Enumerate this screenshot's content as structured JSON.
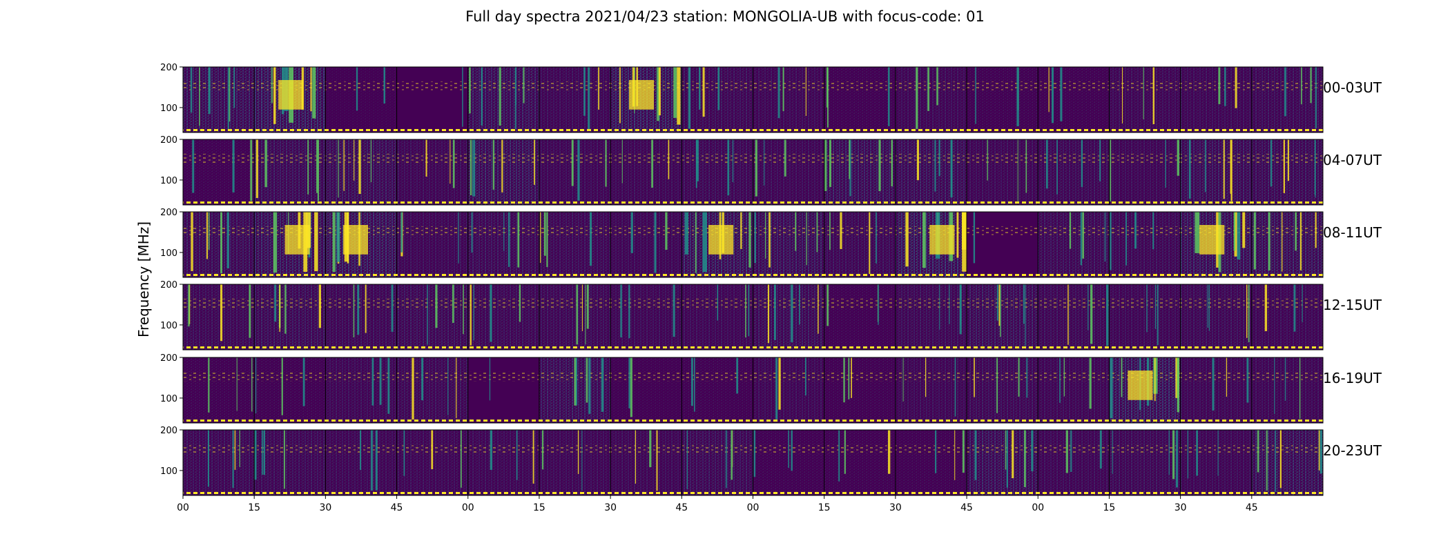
{
  "chart_data": {
    "type": "heatmap",
    "title": "Full day spectra 2021/04/23 station: MONGOLIA-UB with focus-code: 01",
    "ylabel": "Frequency [MHz]",
    "xlabel": "",
    "y_tick_labels": [
      "200",
      "100"
    ],
    "x_tick_labels": [
      "00",
      "15",
      "30",
      "45",
      "00",
      "15",
      "30",
      "45",
      "00",
      "15",
      "30",
      "45",
      "00",
      "15",
      "30",
      "45"
    ],
    "rows": [
      {
        "label": "00-03UT",
        "intensity": [
          0.55,
          0.8,
          0.15,
          0.12,
          0.55,
          0.3,
          0.75,
          0.35,
          0.3,
          0.25,
          0.3,
          0.25,
          0.25,
          0.3,
          0.3,
          0.35
        ]
      },
      {
        "label": "04-07UT",
        "intensity": [
          0.25,
          0.45,
          0.5,
          0.3,
          0.6,
          0.3,
          0.3,
          0.35,
          0.3,
          0.55,
          0.5,
          0.3,
          0.35,
          0.3,
          0.5,
          0.45
        ]
      },
      {
        "label": "08-11UT",
        "intensity": [
          0.45,
          0.65,
          0.7,
          0.3,
          0.4,
          0.35,
          0.3,
          0.7,
          0.55,
          0.35,
          0.8,
          0.12,
          0.4,
          0.35,
          0.65,
          0.6
        ]
      },
      {
        "label": "12-15UT",
        "intensity": [
          0.35,
          0.45,
          0.35,
          0.4,
          0.35,
          0.35,
          0.3,
          0.3,
          0.45,
          0.25,
          0.35,
          0.5,
          0.35,
          0.3,
          0.35,
          0.3
        ]
      },
      {
        "label": "16-19UT",
        "intensity": [
          0.25,
          0.25,
          0.3,
          0.35,
          0.12,
          0.5,
          0.2,
          0.25,
          0.3,
          0.25,
          0.3,
          0.35,
          0.3,
          0.75,
          0.3,
          0.3
        ]
      },
      {
        "label": "20-23UT",
        "intensity": [
          0.35,
          0.35,
          0.3,
          0.3,
          0.3,
          0.3,
          0.3,
          0.4,
          0.25,
          0.25,
          0.25,
          0.55,
          0.3,
          0.35,
          0.3,
          0.6
        ]
      }
    ],
    "colormap": [
      "#440154",
      "#3b528b",
      "#21918c",
      "#5ec962",
      "#fde725"
    ],
    "marker_line_color": "#fde725",
    "grid": false
  }
}
